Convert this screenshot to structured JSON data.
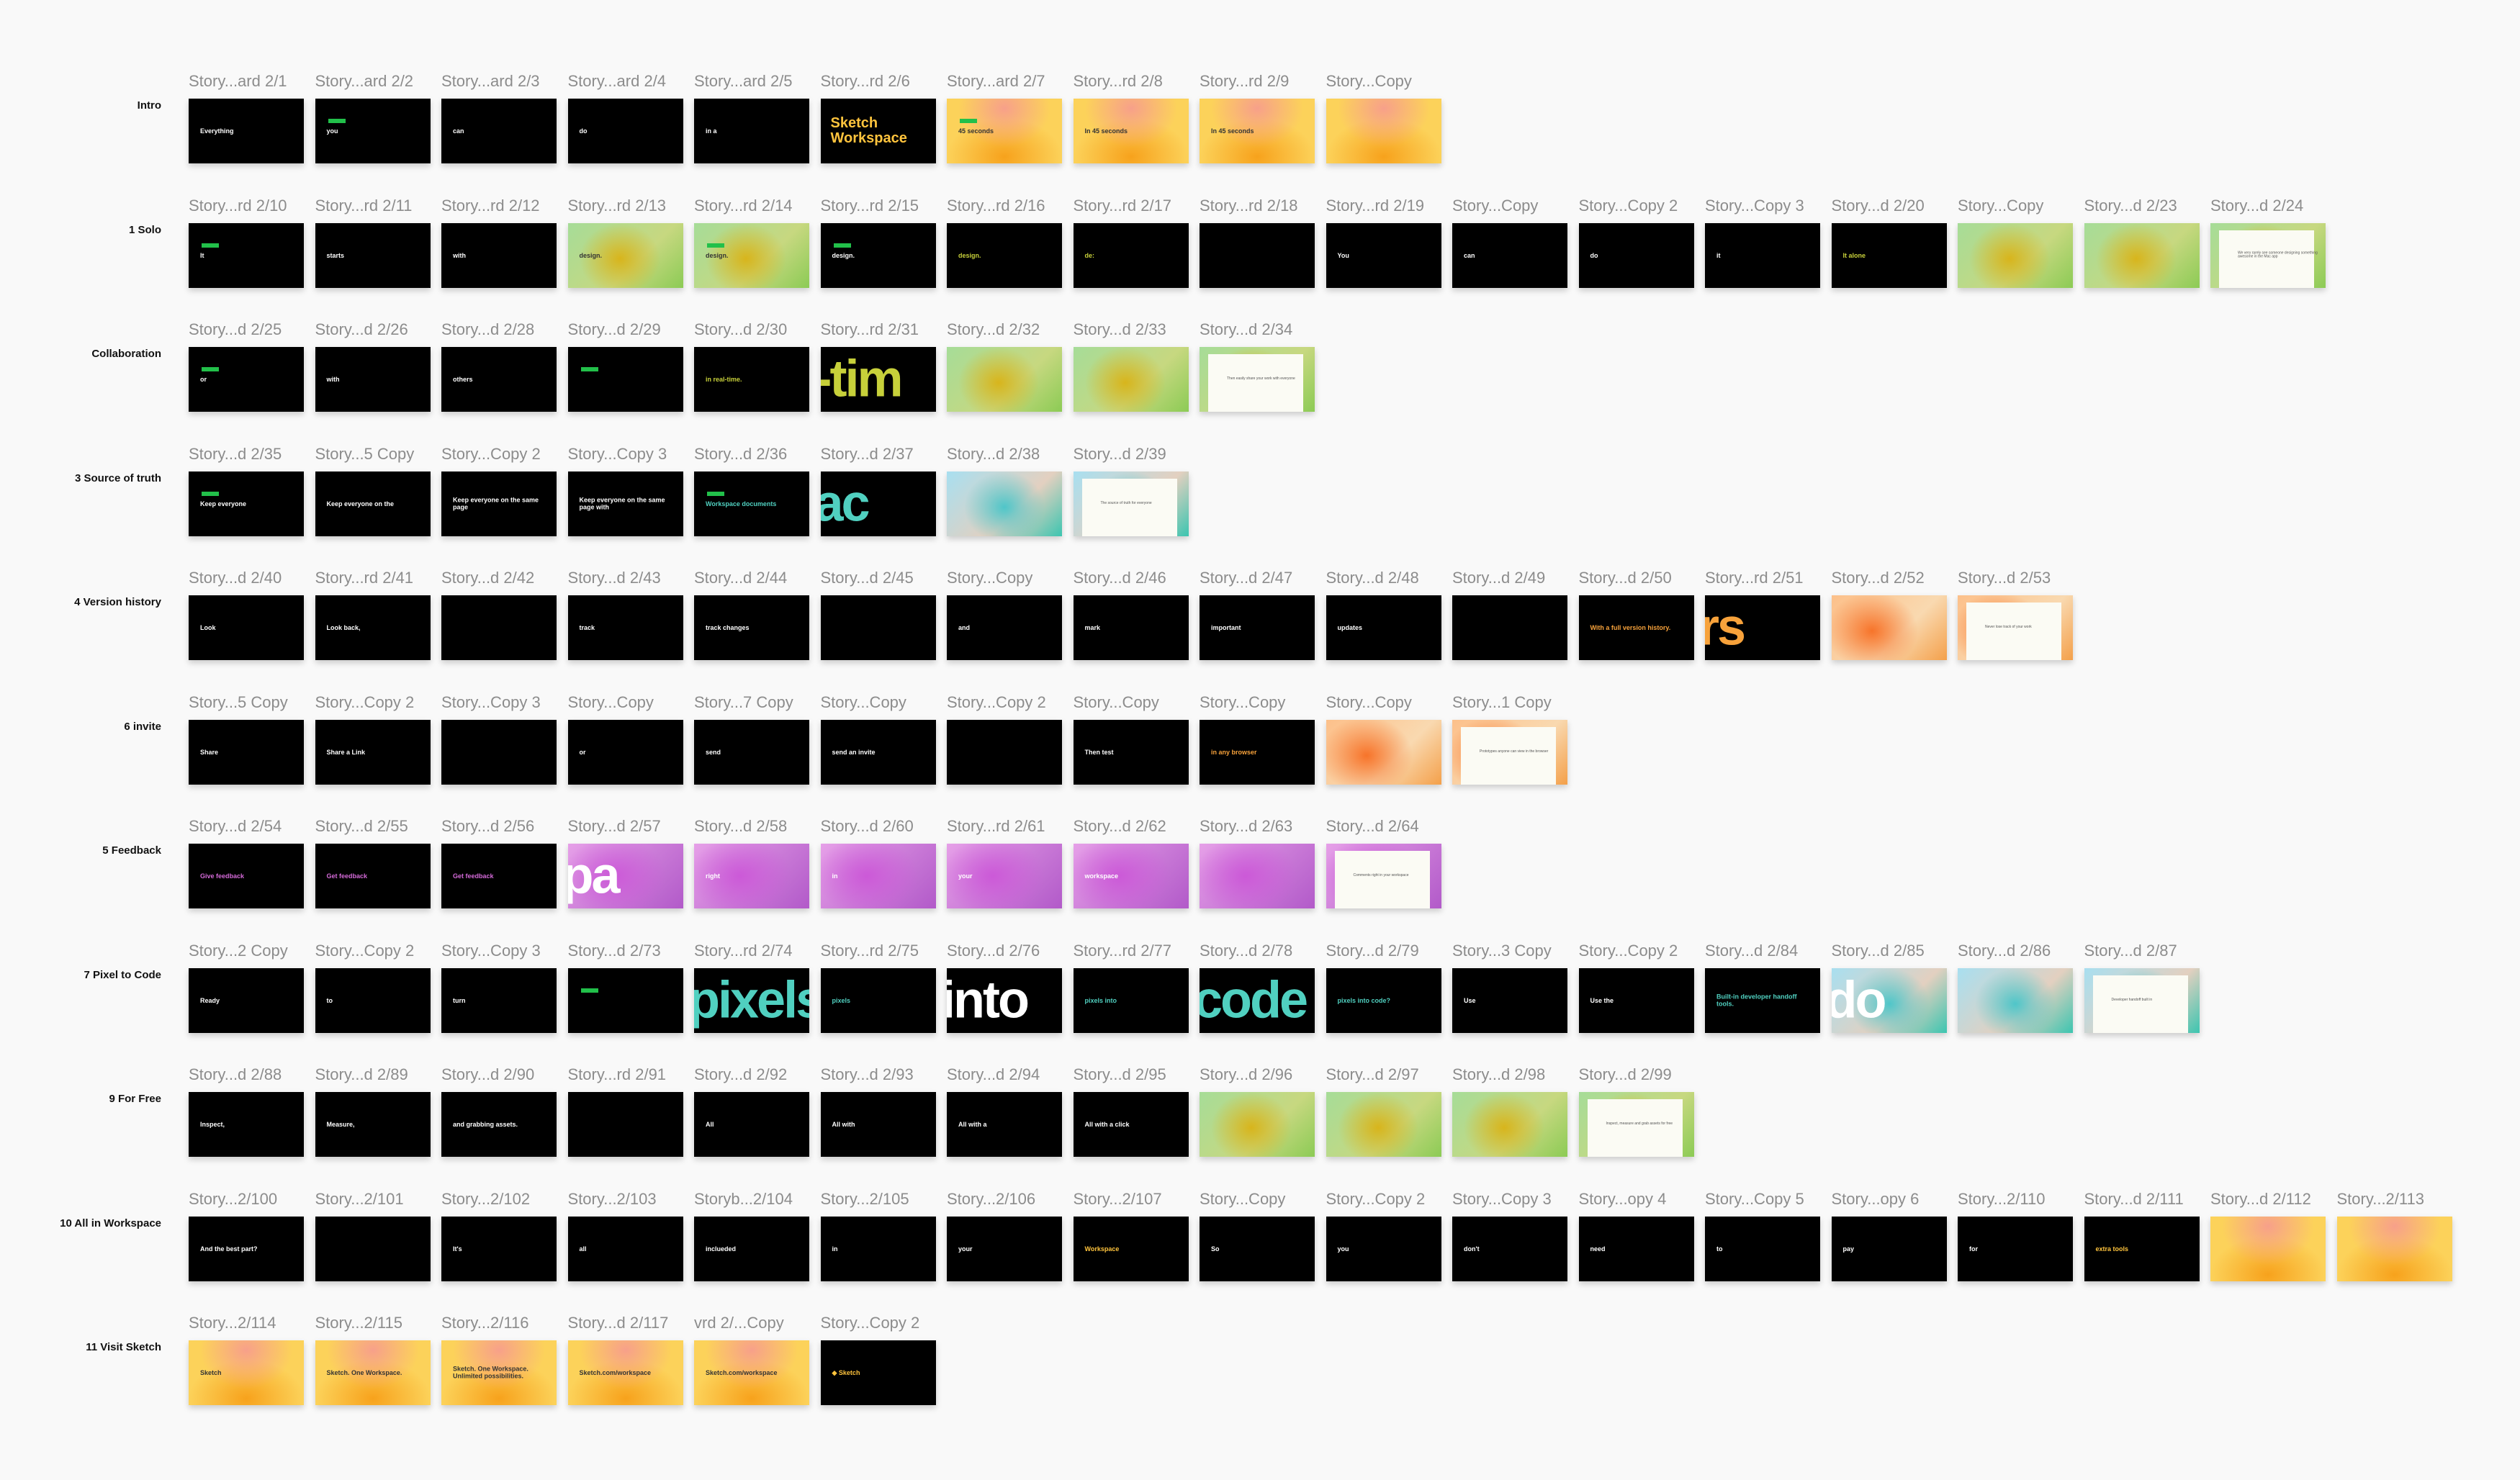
{
  "colors": {
    "background": "#f9f9f9",
    "label": "#8c8c8c",
    "green_bar": "#22c04a"
  },
  "rows": [
    {
      "name": "Intro",
      "artboards": [
        {
          "label": "Story...ard 2/1",
          "text": "Everything",
          "style": "black"
        },
        {
          "label": "Story...ard 2/2",
          "text": "you",
          "style": "black",
          "bar": true
        },
        {
          "label": "Story...ard 2/3",
          "text": "can",
          "style": "black"
        },
        {
          "label": "Story...ard 2/4",
          "text": "do",
          "style": "black"
        },
        {
          "label": "Story...ard 2/5",
          "text": "in a",
          "style": "black"
        },
        {
          "label": "Story...rd 2/6",
          "text": "Sketch Workspace",
          "style": "title"
        },
        {
          "label": "Story...ard 2/7",
          "text": "45 seconds",
          "style": "yellow",
          "bar": true
        },
        {
          "label": "Story...rd 2/8",
          "text": "In 45 seconds",
          "style": "yellow"
        },
        {
          "label": "Story...rd 2/9",
          "text": "In 45 seconds",
          "style": "yellow"
        },
        {
          "label": "Story...Copy",
          "text": "",
          "style": "yellow"
        }
      ]
    },
    {
      "name": "1 Solo",
      "artboards": [
        {
          "label": "Story...rd 2/10",
          "text": "It",
          "style": "black",
          "bar": true
        },
        {
          "label": "Story...rd 2/11",
          "text": "starts",
          "style": "black"
        },
        {
          "label": "Story...rd 2/12",
          "text": "with",
          "style": "black"
        },
        {
          "label": "Story...rd 2/13",
          "text": "design.",
          "style": "green"
        },
        {
          "label": "Story...rd 2/14",
          "text": "design.",
          "style": "green",
          "bar": true
        },
        {
          "label": "Story...rd 2/15",
          "text": "design.",
          "style": "black",
          "bar": true
        },
        {
          "label": "Story...rd 2/16",
          "text": "design.",
          "style": "accent-green"
        },
        {
          "label": "Story...rd 2/17",
          "text": "de:",
          "style": "accent-green"
        },
        {
          "label": "Story...rd 2/18",
          "text": "",
          "style": "black"
        },
        {
          "label": "Story...rd 2/19",
          "text": "You",
          "style": "black"
        },
        {
          "label": "Story...Copy",
          "text": "can",
          "style": "black"
        },
        {
          "label": "Story...Copy 2",
          "text": "do",
          "style": "black"
        },
        {
          "label": "Story...Copy 3",
          "text": "it",
          "style": "black"
        },
        {
          "label": "Story...d 2/20",
          "text": "It alone",
          "style": "accent-green"
        },
        {
          "label": "Story...Copy",
          "text": "",
          "style": "green"
        },
        {
          "label": "Story...d 2/23",
          "text": "",
          "style": "green"
        },
        {
          "label": "Story...d 2/24",
          "text": "We very rarely see someone designing something awesome in the Mac app",
          "style": "green card"
        }
      ]
    },
    {
      "name": "Collaboration",
      "artboards": [
        {
          "label": "Story...d 2/25",
          "text": "or",
          "style": "black",
          "bar": true
        },
        {
          "label": "Story...d 2/26",
          "text": "with",
          "style": "black"
        },
        {
          "label": "Story...d 2/28",
          "text": "others",
          "style": "black"
        },
        {
          "label": "Story...d 2/29",
          "text": "",
          "style": "black",
          "bar": true
        },
        {
          "label": "Story...d 2/30",
          "text": "in real-time.",
          "style": "accent-green"
        },
        {
          "label": "Story...rd 2/31",
          "text": "-tim",
          "style": "big accent-green"
        },
        {
          "label": "Story...d 2/32",
          "text": "",
          "style": "green"
        },
        {
          "label": "Story...d 2/33",
          "text": "",
          "style": "green"
        },
        {
          "label": "Story...d 2/34",
          "text": "Then easily share your work with everyone",
          "style": "green card"
        }
      ]
    },
    {
      "name": "3 Source of truth",
      "artboards": [
        {
          "label": "Story...d 2/35",
          "text": "Keep everyone",
          "style": "black",
          "bar": true
        },
        {
          "label": "Story...5 Copy",
          "text": "Keep everyone on the",
          "style": "black"
        },
        {
          "label": "Story...Copy 2",
          "text": "Keep everyone on the same page",
          "style": "black"
        },
        {
          "label": "Story...Copy 3",
          "text": "Keep everyone on the same page with",
          "style": "black"
        },
        {
          "label": "Story...d 2/36",
          "text": "Workspace documents",
          "style": "accent-teal",
          "bar": true
        },
        {
          "label": "Story...d 2/37",
          "text": "ac",
          "style": "big accent-teal"
        },
        {
          "label": "Story...d 2/38",
          "text": "",
          "style": "teal"
        },
        {
          "label": "Story...d 2/39",
          "text": "The source of truth for everyone",
          "style": "teal card"
        }
      ]
    },
    {
      "name": "4 Version history",
      "artboards": [
        {
          "label": "Story...d 2/40",
          "text": "Look",
          "style": "black"
        },
        {
          "label": "Story...rd 2/41",
          "text": "Look back,",
          "style": "black"
        },
        {
          "label": "Story...d 2/42",
          "text": "",
          "style": "black"
        },
        {
          "label": "Story...d 2/43",
          "text": "track",
          "style": "black"
        },
        {
          "label": "Story...d 2/44",
          "text": "track changes",
          "style": "black"
        },
        {
          "label": "Story...d 2/45",
          "text": "",
          "style": "black"
        },
        {
          "label": "Story...Copy",
          "text": "and",
          "style": "black"
        },
        {
          "label": "Story...d 2/46",
          "text": "mark",
          "style": "black"
        },
        {
          "label": "Story...d 2/47",
          "text": "important",
          "style": "black"
        },
        {
          "label": "Story...d 2/48",
          "text": "updates",
          "style": "black"
        },
        {
          "label": "Story...d 2/49",
          "text": "",
          "style": "black"
        },
        {
          "label": "Story...d 2/50",
          "text": "With a full version history.",
          "style": "accent-orange"
        },
        {
          "label": "Story...rd 2/51",
          "text": "rs",
          "style": "big accent-orange"
        },
        {
          "label": "Story...d 2/52",
          "text": "",
          "style": "orange"
        },
        {
          "label": "Story...d 2/53",
          "text": "Never lose track of your work",
          "style": "orange card"
        }
      ]
    },
    {
      "name": "6 invite",
      "artboards": [
        {
          "label": "Story...5 Copy",
          "text": "Share",
          "style": "black"
        },
        {
          "label": "Story...Copy 2",
          "text": "Share a Link",
          "style": "black"
        },
        {
          "label": "Story...Copy 3",
          "text": "",
          "style": "black"
        },
        {
          "label": "Story...Copy",
          "text": "or",
          "style": "black"
        },
        {
          "label": "Story...7 Copy",
          "text": "send",
          "style": "black"
        },
        {
          "label": "Story...Copy",
          "text": "send an invite",
          "style": "black"
        },
        {
          "label": "Story...Copy 2",
          "text": "",
          "style": "black"
        },
        {
          "label": "Story...Copy",
          "text": "Then test",
          "style": "black"
        },
        {
          "label": "Story...Copy",
          "text": "in any browser",
          "style": "accent-orange"
        },
        {
          "label": "Story...Copy",
          "text": "",
          "style": "orange"
        },
        {
          "label": "Story...1 Copy",
          "text": "Prototypes anyone can view in the browser",
          "style": "orange card"
        }
      ]
    },
    {
      "name": "5 Feedback",
      "artboards": [
        {
          "label": "Story...d 2/54",
          "text": "Give feedback",
          "style": "accent-pink"
        },
        {
          "label": "Story...d 2/55",
          "text": "Get feedback",
          "style": "accent-pink"
        },
        {
          "label": "Story...d 2/56",
          "text": "Get feedback",
          "style": "accent-pink"
        },
        {
          "label": "Story...d 2/57",
          "text": "pa",
          "style": "big purple"
        },
        {
          "label": "Story...d 2/58",
          "text": "right",
          "style": "purple"
        },
        {
          "label": "Story...d 2/60",
          "text": "in",
          "style": "purple"
        },
        {
          "label": "Story...rd 2/61",
          "text": "your",
          "style": "purple"
        },
        {
          "label": "Story...d 2/62",
          "text": "workspace",
          "style": "purple"
        },
        {
          "label": "Story...d 2/63",
          "text": "",
          "style": "purple"
        },
        {
          "label": "Story...d 2/64",
          "text": "Comments right in your workspace",
          "style": "purple card"
        }
      ]
    },
    {
      "name": "7 Pixel to Code",
      "artboards": [
        {
          "label": "Story...2 Copy",
          "text": "Ready",
          "style": "black"
        },
        {
          "label": "Story...Copy 2",
          "text": "to",
          "style": "black"
        },
        {
          "label": "Story...Copy 3",
          "text": "turn",
          "style": "black"
        },
        {
          "label": "Story...d 2/73",
          "text": "",
          "style": "black",
          "bar": true
        },
        {
          "label": "Story...rd 2/74",
          "text": "pixels",
          "style": "big accent-teal"
        },
        {
          "label": "Story...rd 2/75",
          "text": "pixels",
          "style": "accent-teal"
        },
        {
          "label": "Story...d 2/76",
          "text": "into",
          "style": "big"
        },
        {
          "label": "Story...rd 2/77",
          "text": "pixels into",
          "style": "accent-teal"
        },
        {
          "label": "Story...d 2/78",
          "text": "code",
          "style": "big accent-teal"
        },
        {
          "label": "Story...d 2/79",
          "text": "pixels into code?",
          "style": "accent-teal"
        },
        {
          "label": "Story...3 Copy",
          "text": "Use",
          "style": "black"
        },
        {
          "label": "Story...Copy 2",
          "text": "Use the",
          "style": "black"
        },
        {
          "label": "Story...d 2/84",
          "text": "Built-in developer handoff tools.",
          "style": "accent-teal"
        },
        {
          "label": "Story...d 2/85",
          "text": "do",
          "style": "big teal"
        },
        {
          "label": "Story...d 2/86",
          "text": "",
          "style": "teal"
        },
        {
          "label": "Story...d 2/87",
          "text": "Developer handoff built in",
          "style": "teal card"
        }
      ]
    },
    {
      "name": "9 For Free",
      "artboards": [
        {
          "label": "Story...d 2/88",
          "text": "Inspect,",
          "style": "black"
        },
        {
          "label": "Story...d 2/89",
          "text": "Measure,",
          "style": "black"
        },
        {
          "label": "Story...d 2/90",
          "text": "and grabbing assets.",
          "style": "black"
        },
        {
          "label": "Story...rd 2/91",
          "text": "",
          "style": "black"
        },
        {
          "label": "Story...d 2/92",
          "text": "All",
          "style": "black"
        },
        {
          "label": "Story...d 2/93",
          "text": "All with",
          "style": "black"
        },
        {
          "label": "Story...d 2/94",
          "text": "All with a",
          "style": "black"
        },
        {
          "label": "Story...d 2/95",
          "text": "All with a click",
          "style": "black"
        },
        {
          "label": "Story...d 2/96",
          "text": "",
          "style": "green"
        },
        {
          "label": "Story...d 2/97",
          "text": "",
          "style": "green"
        },
        {
          "label": "Story...d 2/98",
          "text": "",
          "style": "green"
        },
        {
          "label": "Story...d 2/99",
          "text": "Inspect, measure and grab assets for free",
          "style": "green card"
        }
      ]
    },
    {
      "name": "10 All in Workspace",
      "artboards": [
        {
          "label": "Story...2/100",
          "text": "And the best part?",
          "style": "black"
        },
        {
          "label": "Story...2/101",
          "text": "",
          "style": "black"
        },
        {
          "label": "Story...2/102",
          "text": "It's",
          "style": "black"
        },
        {
          "label": "Story...2/103",
          "text": "all",
          "style": "black"
        },
        {
          "label": "Storyb...2/104",
          "text": "inclueded",
          "style": "black"
        },
        {
          "label": "Story...2/105",
          "text": "in",
          "style": "black"
        },
        {
          "label": "Story...2/106",
          "text": "your",
          "style": "black"
        },
        {
          "label": "Story...2/107",
          "text": "Workspace",
          "style": "accent-yellow"
        },
        {
          "label": "Story...Copy",
          "text": "So",
          "style": "black"
        },
        {
          "label": "Story...Copy 2",
          "text": "you",
          "style": "black"
        },
        {
          "label": "Story...Copy 3",
          "text": "don't",
          "style": "black"
        },
        {
          "label": "Story...opy 4",
          "text": "need",
          "style": "black"
        },
        {
          "label": "Story...Copy 5",
          "text": "to",
          "style": "black"
        },
        {
          "label": "Story...opy 6",
          "text": "pay",
          "style": "black"
        },
        {
          "label": "Story...2/110",
          "text": "for",
          "style": "black"
        },
        {
          "label": "Story...d 2/111",
          "text": "extra tools",
          "style": "accent-yellow"
        },
        {
          "label": "Story...d 2/112",
          "text": "",
          "style": "yellow"
        },
        {
          "label": "Story...2/113",
          "text": "",
          "style": "yellow"
        }
      ]
    },
    {
      "name": "11 Visit Sketch",
      "artboards": [
        {
          "label": "Story...2/114",
          "text": "Sketch",
          "style": "yellow"
        },
        {
          "label": "Story...2/115",
          "text": "Sketch. One Workspace.",
          "style": "yellow"
        },
        {
          "label": "Story...2/116",
          "text": "Sketch. One Workspace. Unlimited possibilities.",
          "style": "yellow"
        },
        {
          "label": "Story...d 2/117",
          "text": "Sketch.com/workspace",
          "style": "yellow"
        },
        {
          "label": "vrd 2/...Copy",
          "text": "Sketch.com/workspace",
          "style": "yellow"
        },
        {
          "label": "Story...Copy 2",
          "text": "◆ Sketch",
          "style": "accent-yellow"
        }
      ]
    }
  ]
}
